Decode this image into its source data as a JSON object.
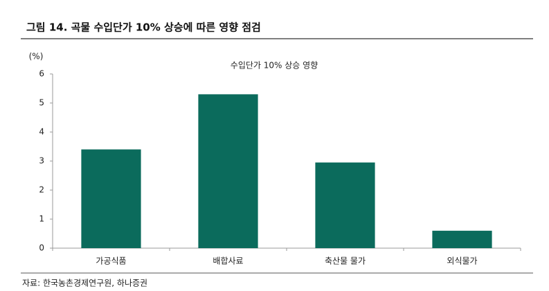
{
  "chart_data": {
    "type": "bar",
    "title": "그림 14. 곡물 수입단가 10% 상승에 따른 영향 점검",
    "subtitle": "수입단가 10% 상승 영향",
    "y_label": "(%)",
    "source": "자료: 한국농촌경제연구원, 하나증권",
    "categories": [
      "가공식품",
      "배합사료",
      "축산물 물가",
      "외식물가"
    ],
    "values": [
      3.4,
      5.3,
      2.95,
      0.6
    ],
    "color": "#0b6b5c",
    "ylim": [
      0,
      6
    ],
    "yticks": [
      0,
      1,
      2,
      3,
      4,
      5,
      6
    ],
    "grid": false
  }
}
